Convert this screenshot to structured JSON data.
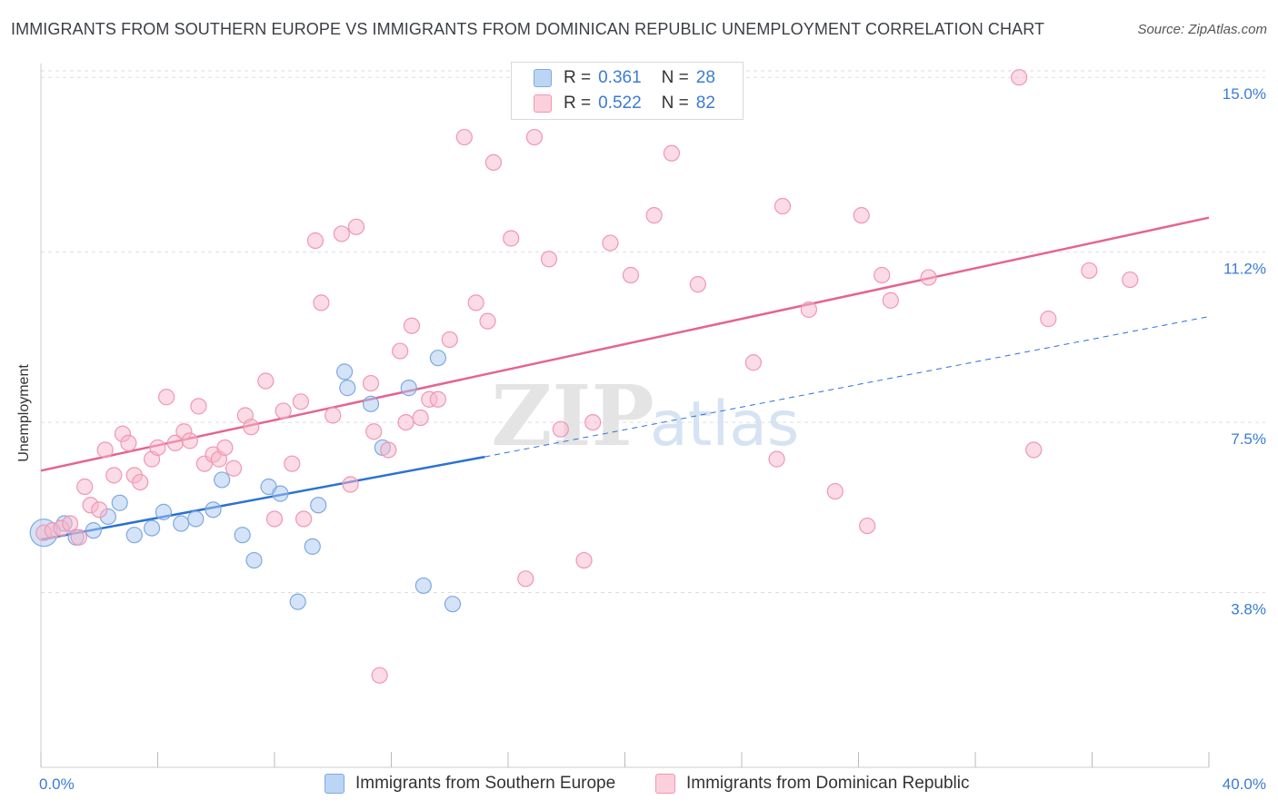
{
  "title": "IMMIGRANTS FROM SOUTHERN EUROPE VS IMMIGRANTS FROM DOMINICAN REPUBLIC UNEMPLOYMENT CORRELATION CHART",
  "source": "Source: ZipAtlas.com",
  "watermark": {
    "zip": "ZIP",
    "atlas": "atlas"
  },
  "legend": {
    "series1": {
      "r_label": "R =",
      "r_value": "0.361",
      "n_label": "N =",
      "n_value": "28"
    },
    "series2": {
      "r_label": "R =",
      "r_value": "0.522",
      "n_label": "N =",
      "n_value": "82"
    }
  },
  "colors": {
    "blue_fill": "#a9c8f0",
    "blue_stroke": "#7ea9e0",
    "blue_line": "#2b72d3",
    "pink_fill": "#f7b8cb",
    "pink_stroke": "#f097b2",
    "pink_line": "#e5648f",
    "axis_text": "#3a7bd5",
    "grid": "#dddddd"
  },
  "chart_data": {
    "type": "scatter",
    "title": "IMMIGRANTS FROM SOUTHERN EUROPE VS IMMIGRANTS FROM DOMINICAN REPUBLIC UNEMPLOYMENT CORRELATION CHART",
    "xlabel": "",
    "ylabel": "Unemployment",
    "xlim": [
      0,
      40
    ],
    "ylim": [
      0,
      15.3
    ],
    "x_tick_labels": [
      {
        "value": 0,
        "label": "0.0%"
      },
      {
        "value": 40,
        "label": "40.0%"
      }
    ],
    "y_tick_labels": [
      {
        "value": 15.0,
        "label": "15.0%"
      },
      {
        "value": 11.2,
        "label": "11.2%"
      },
      {
        "value": 7.5,
        "label": "7.5%"
      },
      {
        "value": 3.8,
        "label": "3.8%"
      }
    ],
    "series": [
      {
        "name": "Immigrants from Southern Europe",
        "color": "blue",
        "R": 0.361,
        "N": 28,
        "trend": {
          "x0": 0,
          "y0": 4.95,
          "x1": 15.2,
          "y1": 6.75,
          "dash_x1": 40,
          "dash_y1": 9.8
        },
        "points": [
          [
            0.1,
            5.1,
            "large"
          ],
          [
            0.8,
            5.3
          ],
          [
            1.2,
            5.0
          ],
          [
            1.8,
            5.15
          ],
          [
            2.3,
            5.45
          ],
          [
            2.7,
            5.75
          ],
          [
            3.2,
            5.05
          ],
          [
            3.8,
            5.2
          ],
          [
            4.2,
            5.55
          ],
          [
            4.8,
            5.3
          ],
          [
            5.3,
            5.4
          ],
          [
            5.9,
            5.6
          ],
          [
            6.2,
            6.25
          ],
          [
            6.9,
            5.05
          ],
          [
            7.3,
            4.5
          ],
          [
            7.8,
            6.1
          ],
          [
            8.2,
            5.95
          ],
          [
            8.8,
            3.6
          ],
          [
            9.3,
            4.8
          ],
          [
            9.5,
            5.7
          ],
          [
            10.4,
            8.6
          ],
          [
            10.5,
            8.25
          ],
          [
            11.3,
            7.9
          ],
          [
            11.7,
            6.95
          ],
          [
            12.6,
            8.25
          ],
          [
            13.1,
            3.95
          ],
          [
            13.6,
            8.9
          ],
          [
            14.1,
            3.55
          ]
        ]
      },
      {
        "name": "Immigrants from Dominican Republic",
        "color": "pink",
        "R": 0.522,
        "N": 82,
        "trend": {
          "x0": 0,
          "y0": 6.45,
          "x1": 40,
          "y1": 11.95
        },
        "points": [
          [
            0.1,
            5.1
          ],
          [
            0.4,
            5.15
          ],
          [
            0.7,
            5.2
          ],
          [
            1.0,
            5.3
          ],
          [
            1.3,
            5.0
          ],
          [
            1.5,
            6.1
          ],
          [
            1.7,
            5.7
          ],
          [
            2.0,
            5.6
          ],
          [
            2.2,
            6.9
          ],
          [
            2.5,
            6.35
          ],
          [
            2.8,
            7.25
          ],
          [
            3.0,
            7.05
          ],
          [
            3.2,
            6.35
          ],
          [
            3.4,
            6.2
          ],
          [
            3.8,
            6.7
          ],
          [
            4.0,
            6.95
          ],
          [
            4.3,
            8.05
          ],
          [
            4.6,
            7.05
          ],
          [
            4.9,
            7.3
          ],
          [
            5.1,
            7.1
          ],
          [
            5.4,
            7.85
          ],
          [
            5.6,
            6.6
          ],
          [
            5.9,
            6.8
          ],
          [
            6.1,
            6.7
          ],
          [
            6.3,
            6.95
          ],
          [
            6.6,
            6.5
          ],
          [
            7.0,
            7.65
          ],
          [
            7.2,
            7.4
          ],
          [
            7.7,
            8.4
          ],
          [
            8.0,
            5.4
          ],
          [
            8.3,
            7.75
          ],
          [
            8.6,
            6.6
          ],
          [
            8.9,
            7.95
          ],
          [
            9.0,
            5.4
          ],
          [
            9.4,
            11.45
          ],
          [
            9.6,
            10.1
          ],
          [
            10.0,
            7.65
          ],
          [
            10.3,
            11.6
          ],
          [
            10.6,
            6.15
          ],
          [
            10.8,
            11.75
          ],
          [
            11.3,
            8.35
          ],
          [
            11.4,
            7.3
          ],
          [
            11.6,
            2.0
          ],
          [
            11.9,
            6.9
          ],
          [
            12.3,
            9.05
          ],
          [
            12.5,
            7.5
          ],
          [
            12.7,
            9.6
          ],
          [
            13.0,
            7.6
          ],
          [
            13.3,
            8.0
          ],
          [
            13.6,
            8.0
          ],
          [
            14.0,
            9.3
          ],
          [
            14.5,
            13.7
          ],
          [
            14.9,
            10.1
          ],
          [
            15.3,
            9.7
          ],
          [
            15.5,
            13.15
          ],
          [
            16.1,
            11.5
          ],
          [
            16.6,
            4.1
          ],
          [
            16.9,
            13.7
          ],
          [
            17.4,
            11.05
          ],
          [
            17.8,
            7.35
          ],
          [
            18.6,
            4.5
          ],
          [
            18.9,
            7.5
          ],
          [
            19.5,
            11.4
          ],
          [
            20.2,
            10.7
          ],
          [
            21.0,
            12.0
          ],
          [
            21.6,
            13.35
          ],
          [
            22.5,
            10.5
          ],
          [
            24.4,
            8.8
          ],
          [
            25.2,
            6.7
          ],
          [
            25.4,
            12.2
          ],
          [
            26.3,
            9.95
          ],
          [
            27.2,
            6.0
          ],
          [
            28.1,
            12.0
          ],
          [
            28.3,
            5.25
          ],
          [
            28.8,
            10.7
          ],
          [
            29.1,
            10.15
          ],
          [
            30.4,
            10.65
          ],
          [
            33.5,
            15.0
          ],
          [
            34.0,
            6.9
          ],
          [
            34.5,
            9.75
          ],
          [
            35.9,
            10.8
          ],
          [
            37.3,
            10.6
          ]
        ]
      }
    ]
  }
}
